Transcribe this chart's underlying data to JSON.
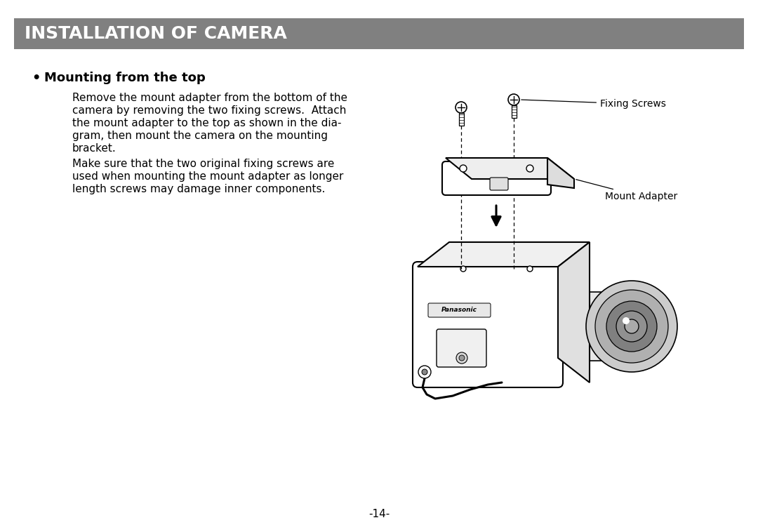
{
  "title": "INSTALLATION OF CAMERA",
  "title_bg_color": "#808080",
  "title_text_color": "#ffffff",
  "page_bg_color": "#ffffff",
  "section_heading": "Mounting from the top",
  "para1_lines": [
    "Remove the mount adapter from the bottom of the",
    "camera by removing the two fixing screws.  Attach",
    "the mount adapter to the top as shown in the dia-",
    "gram, then mount the camera on the mounting",
    "bracket."
  ],
  "para2_lines": [
    "Make sure that the two original fixing screws are",
    "used when mounting the mount adapter as longer",
    "length screws may damage inner components."
  ],
  "label_fixing_screws": "Fixing Screws",
  "label_mount_adapter": "Mount Adapter",
  "page_number": "-14-",
  "title_fontsize": 18,
  "heading_fontsize": 13,
  "body_fontsize": 11,
  "label_fontsize": 10
}
